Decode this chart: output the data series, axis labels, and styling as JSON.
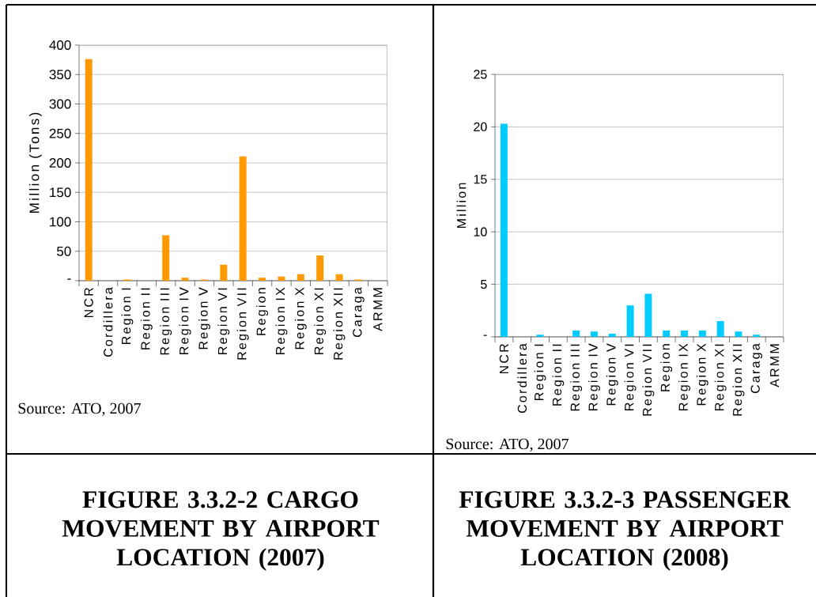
{
  "chart_data": [
    {
      "type": "bar",
      "title": "FIGURE 3.3.2-2 CARGO MOVEMENT BY AIRPORT LOCATION (2007)",
      "ylabel": "Million (Tons)",
      "categories": [
        "NCR",
        "Cordillera",
        "Region I",
        "Region II",
        "Region III",
        "Region IV",
        "Region V",
        "Region VI",
        "Region VII",
        "Region",
        "Region IX",
        "Region X",
        "Region XI",
        "Region XII",
        "Caraga",
        "ARMM"
      ],
      "values": [
        376,
        0,
        2,
        0,
        77,
        5,
        2,
        27,
        211,
        5,
        7,
        11,
        43,
        11,
        2,
        0
      ],
      "color": "#ff9900",
      "ylim": [
        0,
        400
      ],
      "yticks": [
        {
          "value": 0,
          "label": "-"
        },
        50,
        100,
        150,
        200,
        250,
        300,
        350,
        400
      ],
      "grid": "y",
      "annotations": [
        "Source: ATO, 2007"
      ]
    },
    {
      "type": "bar",
      "title": "FIGURE 3.3.2-3 PASSENGER MOVEMENT BY AIRPORT LOCATION (2008)",
      "ylabel": "Million",
      "categories": [
        "NCR",
        "Cordillera",
        "Region I",
        "Region II",
        "Region III",
        "Region IV",
        "Region V",
        "Region VI",
        "Region VII",
        "Region",
        "Region IX",
        "Region X",
        "Region XI",
        "Region XII",
        "Caraga",
        "ARMM"
      ],
      "values": [
        20.3,
        0,
        0.2,
        0,
        0.6,
        0.5,
        0.3,
        3.0,
        4.1,
        0.6,
        0.6,
        0.6,
        1.5,
        0.5,
        0.2,
        0
      ],
      "color": "#00ccff",
      "ylim": [
        0,
        25
      ],
      "yticks": [
        {
          "value": 0,
          "label": "-"
        },
        5,
        10,
        15,
        20,
        25
      ],
      "grid": "y",
      "annotations": [
        "Source: ATO, 2007"
      ]
    }
  ]
}
